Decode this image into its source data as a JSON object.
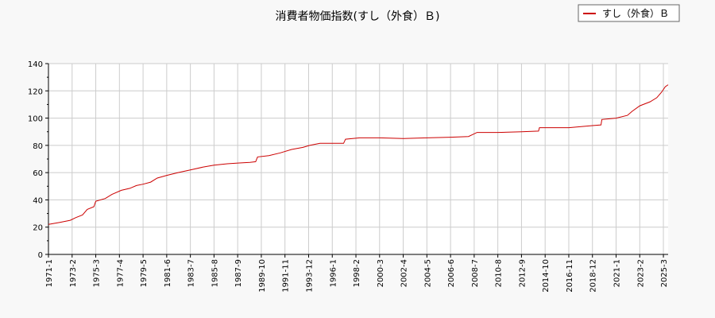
{
  "chart_data": {
    "type": "line",
    "title": "消費者物価指数(すし（外食）Ｂ)",
    "ylim": [
      0,
      140
    ],
    "y_ticks": [
      0,
      20,
      40,
      60,
      80,
      100,
      120,
      140
    ],
    "x_tick_labels": [
      "1971-1",
      "1973-2",
      "1975-3",
      "1977-4",
      "1979-5",
      "1981-6",
      "1983-7",
      "1985-8",
      "1987-9",
      "1989-10",
      "1991-11",
      "1993-12",
      "1996-1",
      "1998-2",
      "2000-3",
      "2002-4",
      "2004-5",
      "2006-6",
      "2008-7",
      "2010-8",
      "2012-9",
      "2014-10",
      "2016-11",
      "2018-12",
      "2021-1",
      "2023-2",
      "2025-3"
    ],
    "x_range": [
      "1971-1",
      "2025-8"
    ],
    "grid": true,
    "legend_position": "top-right",
    "line_color": "#cc0000",
    "series": [
      {
        "name": "すし（外食）Ｂ",
        "points": [
          [
            "1971-1",
            22
          ],
          [
            "1972-1",
            23.5
          ],
          [
            "1972-12",
            25
          ],
          [
            "1973-6",
            27
          ],
          [
            "1974-1",
            29
          ],
          [
            "1974-6",
            33
          ],
          [
            "1975-1",
            35
          ],
          [
            "1975-3",
            39
          ],
          [
            "1976-1",
            41
          ],
          [
            "1976-8",
            44
          ],
          [
            "1977-6",
            47
          ],
          [
            "1978-3",
            48.5
          ],
          [
            "1978-10",
            50.5
          ],
          [
            "1979-5",
            51.5
          ],
          [
            "1980-1",
            53
          ],
          [
            "1980-8",
            56
          ],
          [
            "1981-6",
            58
          ],
          [
            "1982-6",
            60
          ],
          [
            "1983-7",
            62
          ],
          [
            "1984-8",
            64
          ],
          [
            "1985-8",
            65.5
          ],
          [
            "1986-10",
            66.5
          ],
          [
            "1987-9",
            67
          ],
          [
            "1988-10",
            67.5
          ],
          [
            "1989-4",
            68
          ],
          [
            "1989-6",
            71.5
          ],
          [
            "1990-6",
            72.5
          ],
          [
            "1991-6",
            74.5
          ],
          [
            "1992-6",
            77
          ],
          [
            "1993-6",
            78.5
          ],
          [
            "1994-1",
            80
          ],
          [
            "1994-12",
            81.5
          ],
          [
            "1996-1",
            81.5
          ],
          [
            "1997-1",
            81.5
          ],
          [
            "1997-3",
            84.5
          ],
          [
            "1998-6",
            85.5
          ],
          [
            "2000-3",
            85.5
          ],
          [
            "2002-4",
            85
          ],
          [
            "2004-5",
            85.5
          ],
          [
            "2006-6",
            86
          ],
          [
            "2008-1",
            86.5
          ],
          [
            "2008-10",
            89.5
          ],
          [
            "2010-8",
            89.5
          ],
          [
            "2012-9",
            90
          ],
          [
            "2014-3",
            90.5
          ],
          [
            "2014-4",
            93
          ],
          [
            "2016-11",
            93
          ],
          [
            "2018-12",
            94.5
          ],
          [
            "2019-9",
            95
          ],
          [
            "2019-10",
            99
          ],
          [
            "2021-1",
            100
          ],
          [
            "2022-1",
            102
          ],
          [
            "2022-6",
            105
          ],
          [
            "2023-2",
            109
          ],
          [
            "2024-1",
            112
          ],
          [
            "2024-8",
            115
          ],
          [
            "2025-1",
            119
          ],
          [
            "2025-5",
            123
          ],
          [
            "2025-8",
            124.5
          ]
        ]
      }
    ]
  }
}
